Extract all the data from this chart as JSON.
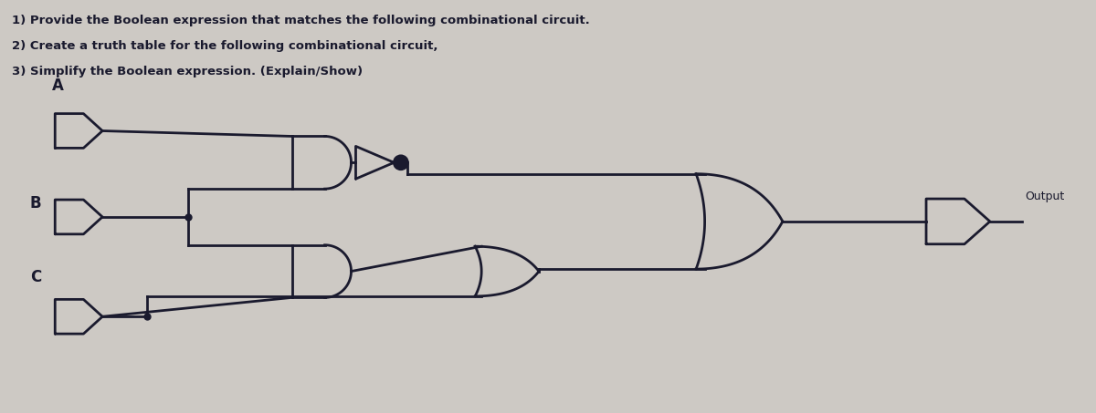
{
  "bg_color": "#cdc9c4",
  "line_color": "#1a1a2e",
  "text_color": "#1a1a2e",
  "title_lines": [
    "1) Provide the Boolean expression that matches the following combinational circuit.",
    "2) Create a truth table for the following combinational circuit,",
    "3) Simplify the Boolean expression. (Explain/Show)"
  ],
  "output_label": "Output",
  "figsize": [
    12.0,
    4.53
  ],
  "dpi": 100
}
